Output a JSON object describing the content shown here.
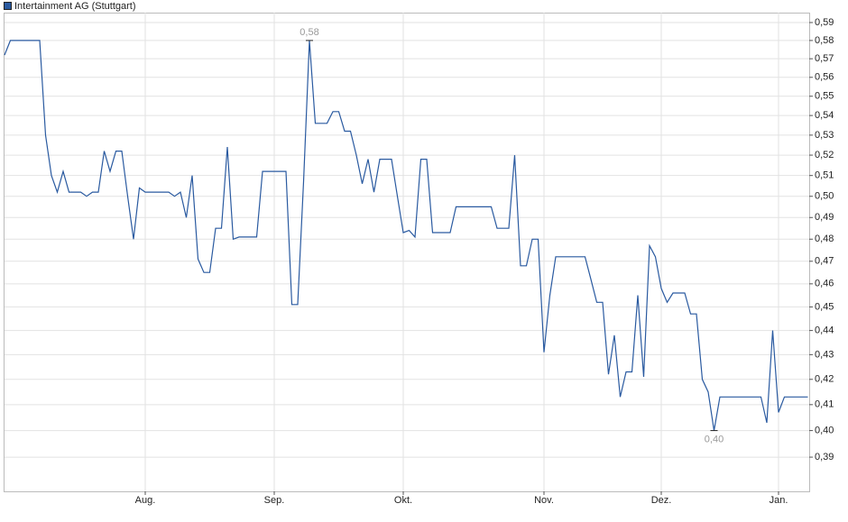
{
  "chart_data": {
    "type": "line",
    "log_scale": true,
    "grid": true,
    "ylim": [
      0.3775,
      0.5956
    ],
    "yticks": [
      {
        "value": 0.39,
        "label": "0,39"
      },
      {
        "value": 0.4,
        "label": "0,40"
      },
      {
        "value": 0.41,
        "label": "0,41"
      },
      {
        "value": 0.42,
        "label": "0,42"
      },
      {
        "value": 0.43,
        "label": "0,43"
      },
      {
        "value": 0.44,
        "label": "0,44"
      },
      {
        "value": 0.45,
        "label": "0,45"
      },
      {
        "value": 0.46,
        "label": "0,46"
      },
      {
        "value": 0.47,
        "label": "0,47"
      },
      {
        "value": 0.48,
        "label": "0,48"
      },
      {
        "value": 0.49,
        "label": "0,49"
      },
      {
        "value": 0.5,
        "label": "0,50"
      },
      {
        "value": 0.51,
        "label": "0,51"
      },
      {
        "value": 0.52,
        "label": "0,52"
      },
      {
        "value": 0.53,
        "label": "0,53"
      },
      {
        "value": 0.54,
        "label": "0,54"
      },
      {
        "value": 0.55,
        "label": "0,55"
      },
      {
        "value": 0.56,
        "label": "0,56"
      },
      {
        "value": 0.57,
        "label": "0,57"
      },
      {
        "value": 0.58,
        "label": "0,58"
      },
      {
        "value": 0.59,
        "label": "0,59"
      }
    ],
    "categories": [
      null,
      null,
      null,
      null,
      null,
      null,
      null,
      null,
      null,
      null,
      null,
      null,
      null,
      null,
      null,
      null,
      null,
      null,
      null,
      null,
      null,
      null,
      null,
      null,
      "Aug.",
      null,
      null,
      null,
      null,
      null,
      null,
      null,
      null,
      null,
      null,
      null,
      null,
      null,
      null,
      null,
      null,
      null,
      null,
      null,
      null,
      null,
      "Sep.",
      null,
      null,
      null,
      null,
      null,
      null,
      null,
      null,
      null,
      null,
      null,
      null,
      null,
      null,
      null,
      null,
      null,
      null,
      null,
      null,
      null,
      "Okt.",
      null,
      null,
      null,
      null,
      null,
      null,
      null,
      null,
      null,
      null,
      null,
      null,
      null,
      null,
      null,
      null,
      null,
      null,
      null,
      null,
      null,
      null,
      null,
      "Nov.",
      null,
      null,
      null,
      null,
      null,
      null,
      null,
      null,
      null,
      null,
      null,
      null,
      null,
      null,
      null,
      null,
      null,
      null,
      null,
      "Dez.",
      null,
      null,
      null,
      null,
      null,
      null,
      null,
      null,
      null,
      null,
      null,
      null,
      null,
      null,
      null,
      null,
      null,
      null,
      null,
      "Jan.",
      null,
      null,
      null,
      null,
      null
    ],
    "series": [
      {
        "name": "Intertainment AG (Stuttgart)",
        "color": "#2a5aa0",
        "values": [
          0.572,
          0.58,
          0.58,
          0.58,
          0.58,
          0.58,
          0.58,
          0.53,
          0.51,
          0.502,
          0.512,
          0.502,
          0.502,
          0.502,
          0.5,
          0.502,
          0.502,
          0.522,
          0.512,
          0.522,
          0.522,
          0.5,
          0.48,
          0.504,
          0.502,
          0.502,
          0.502,
          0.502,
          0.502,
          0.5,
          0.502,
          0.49,
          0.51,
          0.471,
          0.465,
          0.465,
          0.485,
          0.485,
          0.524,
          0.48,
          0.481,
          0.481,
          0.481,
          0.481,
          0.512,
          0.512,
          0.512,
          0.512,
          0.512,
          0.451,
          0.451,
          0.507,
          0.58,
          0.536,
          0.536,
          0.536,
          0.542,
          0.542,
          0.532,
          0.532,
          0.52,
          0.506,
          0.518,
          0.502,
          0.518,
          0.518,
          0.518,
          0.5,
          0.483,
          0.484,
          0.481,
          0.518,
          0.518,
          0.483,
          0.483,
          0.483,
          0.483,
          0.495,
          0.495,
          0.495,
          0.495,
          0.495,
          0.495,
          0.495,
          0.485,
          0.485,
          0.485,
          0.52,
          0.468,
          0.468,
          0.48,
          0.48,
          0.431,
          0.455,
          0.472,
          0.472,
          0.472,
          0.472,
          0.472,
          0.472,
          0.462,
          0.452,
          0.452,
          0.422,
          0.438,
          0.413,
          0.423,
          0.423,
          0.455,
          0.421,
          0.477,
          0.472,
          0.458,
          0.452,
          0.456,
          0.456,
          0.456,
          0.447,
          0.447,
          0.42,
          0.415,
          0.4,
          0.413,
          0.413,
          0.413,
          0.413,
          0.413,
          0.413,
          0.413,
          0.413,
          0.403,
          0.44,
          0.407,
          0.413,
          0.413,
          0.413,
          0.413,
          0.413
        ],
        "value_labels": [
          null,
          null,
          null,
          null,
          null,
          null,
          null,
          null,
          null,
          null,
          null,
          null,
          null,
          null,
          null,
          null,
          null,
          null,
          null,
          null,
          null,
          null,
          null,
          null,
          null,
          null,
          null,
          null,
          null,
          null,
          null,
          null,
          null,
          null,
          null,
          null,
          null,
          null,
          null,
          null,
          null,
          null,
          null,
          null,
          null,
          null,
          null,
          null,
          null,
          null,
          null,
          null,
          "0,58",
          null,
          null,
          null,
          null,
          null,
          null,
          null,
          null,
          null,
          null,
          null,
          null,
          null,
          null,
          null,
          null,
          null,
          null,
          null,
          null,
          null,
          null,
          null,
          null,
          null,
          null,
          null,
          null,
          null,
          null,
          null,
          null,
          null,
          null,
          null,
          null,
          null,
          null,
          null,
          null,
          null,
          null,
          null,
          null,
          null,
          null,
          null,
          null,
          null,
          null,
          null,
          null,
          null,
          null,
          null,
          null,
          null,
          null,
          null,
          null,
          null,
          null,
          null,
          null,
          null,
          null,
          null,
          null,
          "0,40",
          null,
          null,
          null,
          null,
          null,
          null,
          null,
          null,
          null,
          null,
          null,
          null,
          null,
          null,
          null,
          null
        ]
      }
    ]
  }
}
